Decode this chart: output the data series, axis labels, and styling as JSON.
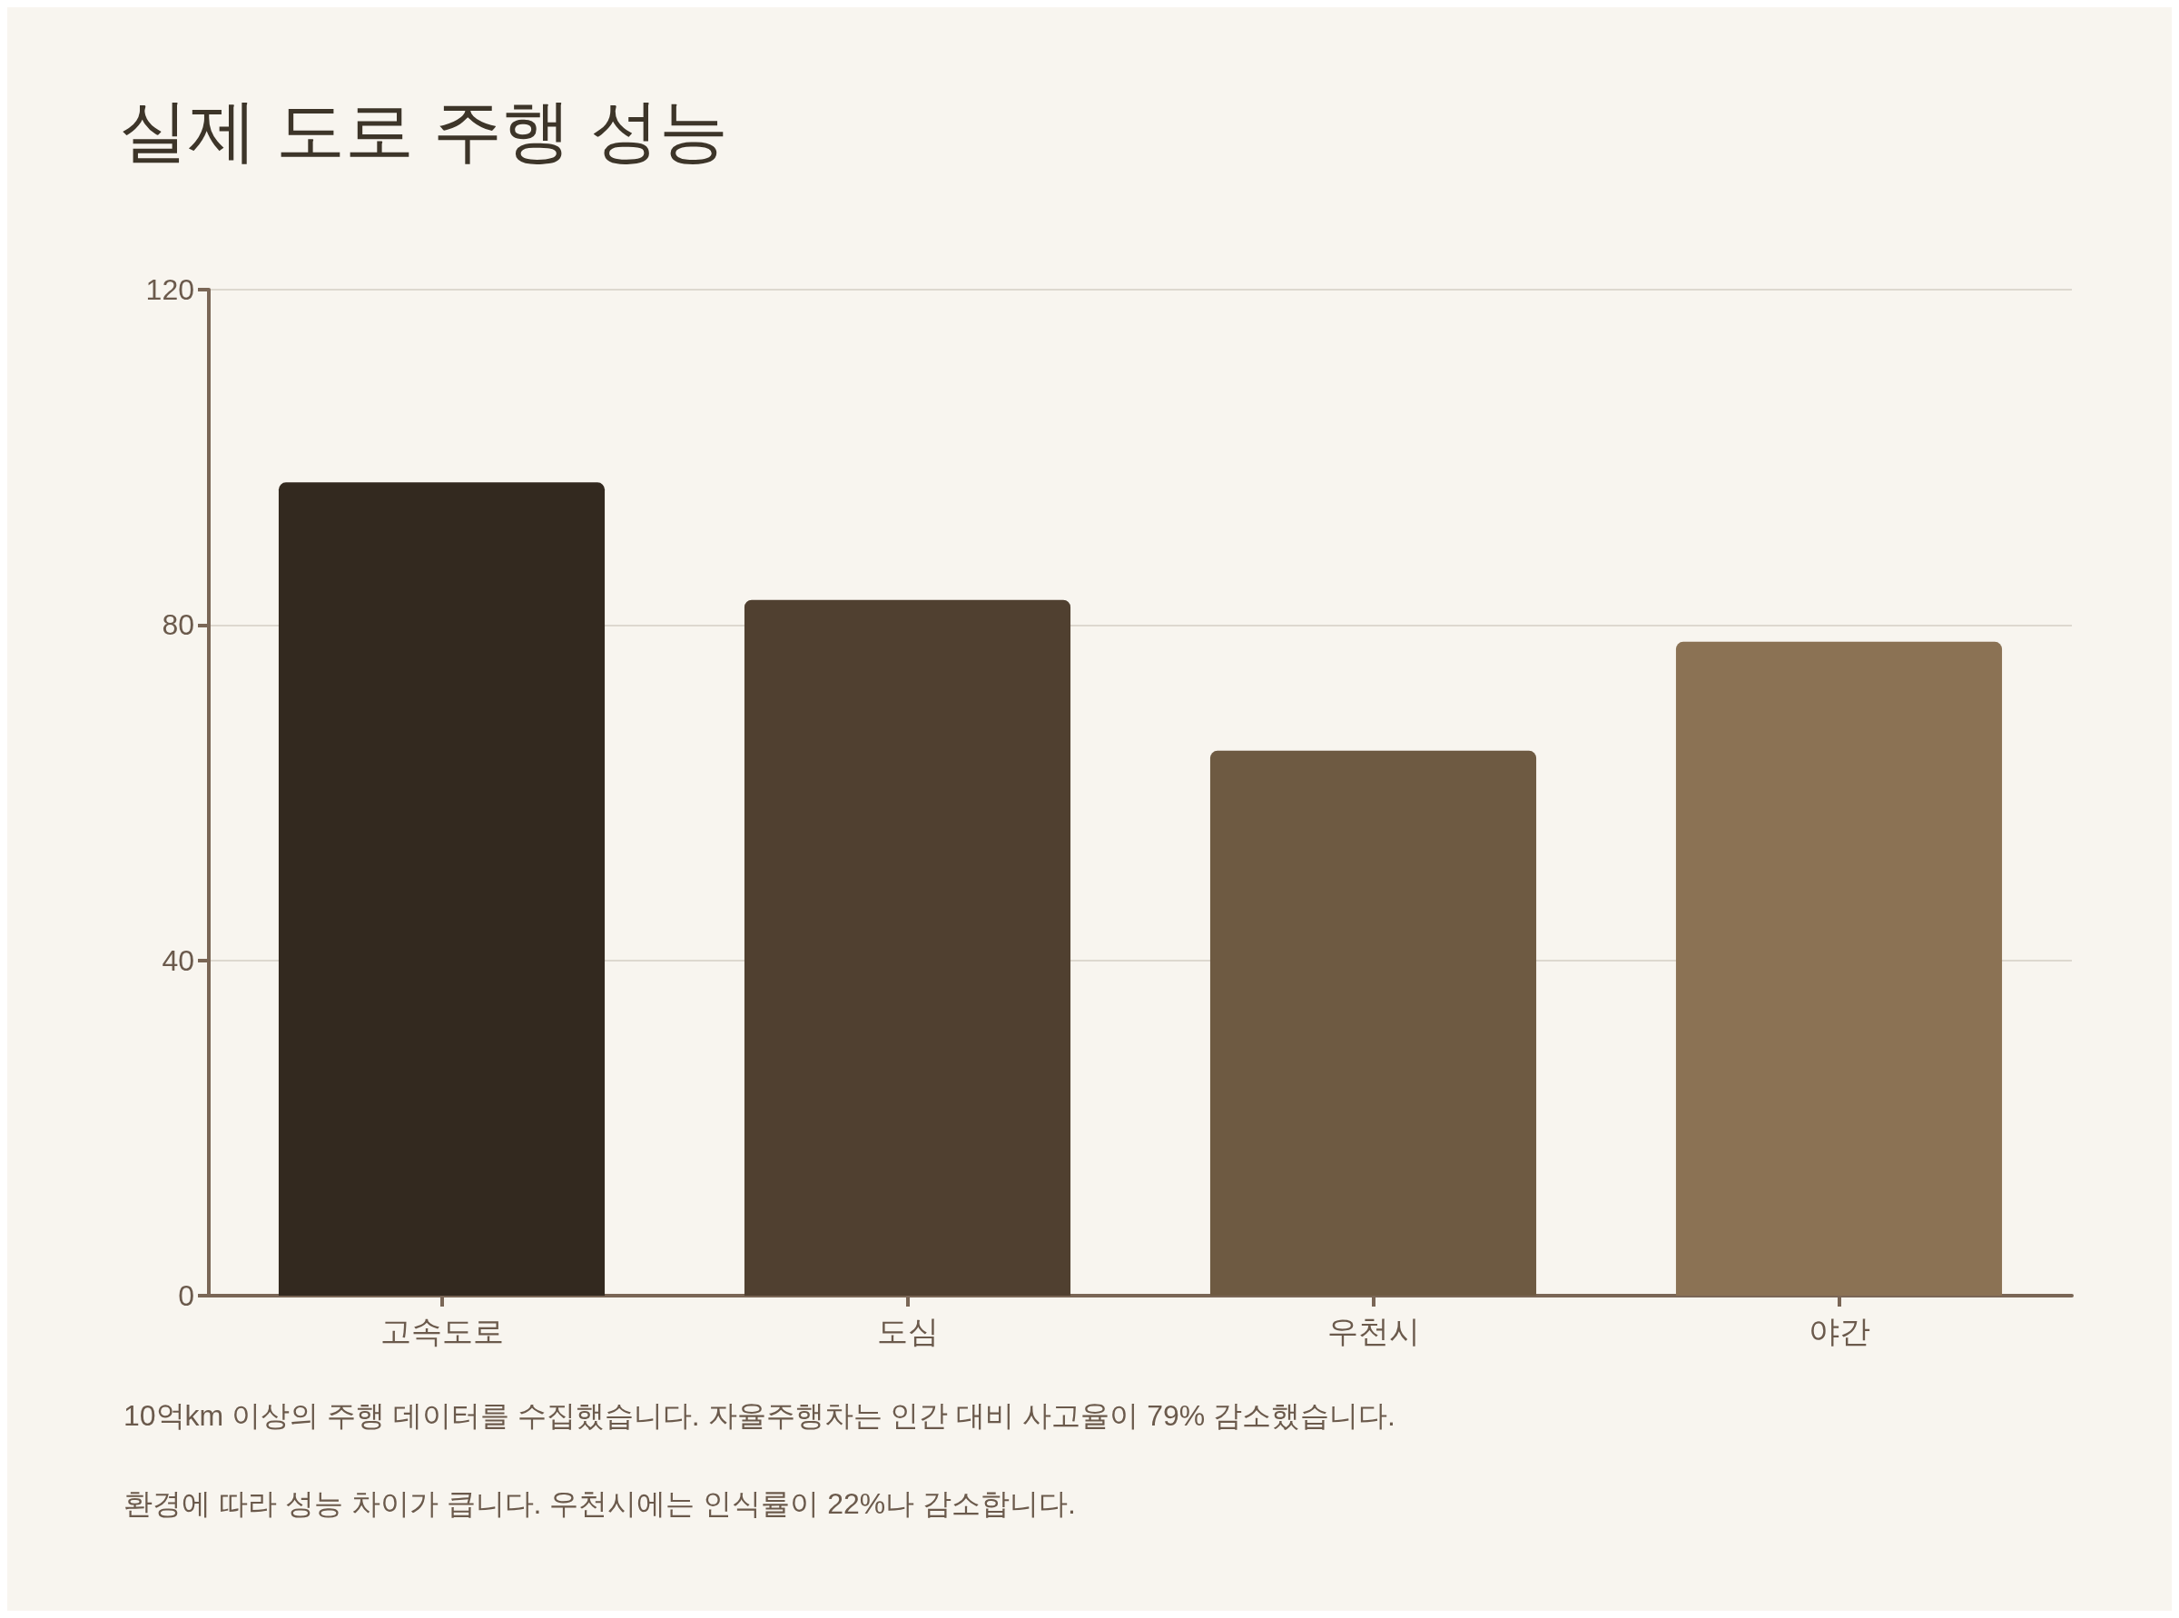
{
  "chart_data": {
    "type": "bar",
    "title": "실제 도로 주행 성능",
    "categories": [
      "고속도로",
      "도심",
      "우천시",
      "야간"
    ],
    "values": [
      97,
      83,
      65,
      78
    ],
    "colors": [
      "#33291f",
      "#504030",
      "#6e5a42",
      "#8b7254"
    ],
    "ylim": [
      0,
      120
    ],
    "yticks": [
      0,
      40,
      80,
      120
    ],
    "grid": "y",
    "annotations": [
      "10억km 이상의 주행 데이터를 수집했습니다. 자율주행차는 인간 대비 사고율이 79% 감소했습니다.",
      "환경에 따라 성능 차이가 큽니다. 우천시에는 인식률이 22%나 감소합니다."
    ]
  }
}
